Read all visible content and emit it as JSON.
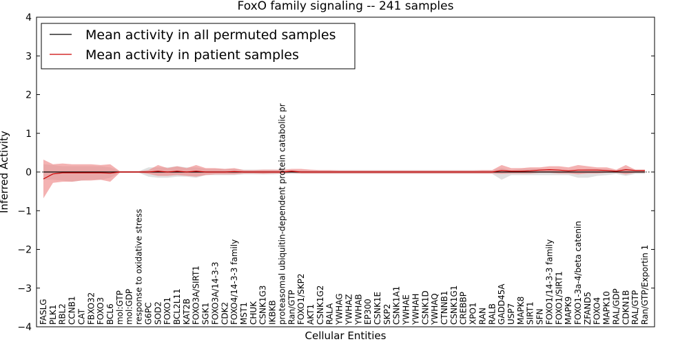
{
  "chart_data": {
    "type": "line",
    "title": "FoxO family signaling -- 241 samples",
    "xlabel": "Cellular Entities",
    "ylabel": "Inferred Activity",
    "ylim": [
      -4,
      4
    ],
    "yticks": [
      -4,
      -3,
      -2,
      -1,
      0,
      1,
      2,
      3,
      4
    ],
    "ytick_labels": [
      "−4",
      "−3",
      "−2",
      "−1",
      "0",
      "1",
      "2",
      "3",
      "4"
    ],
    "legend_position": "top-left",
    "colors": {
      "permuted": "#000000",
      "permuted_band": "#d3d3d3",
      "patient": "#cc0000",
      "patient_band": "#ee8888"
    },
    "categories": [
      "FASLG",
      "PLK1",
      "RBL2",
      "CCNB1",
      "CAT",
      "FBXO32",
      "FOXO3",
      "BCL6",
      "mol:GTP",
      "mol:GDP",
      "response to oxidative stress",
      "G6PC",
      "SOD2",
      "FOXO1",
      "BCL2L11",
      "KAT2B",
      "FOXO3A/SIRT1",
      "SGK1",
      "FOXO3A/14-3-3",
      "CDK2",
      "FOXO4/14-3-3 family",
      "MST1",
      "CHUK",
      "CSNK1G3",
      "IKBKB",
      "proteasomal ubiquitin-dependent protein catabolic pr",
      "Ran/GTP",
      "FOXO1/SKP2",
      "AKT1",
      "CSNK1G2",
      "RALA",
      "YWHAG",
      "YWHAZ",
      "YWHAB",
      "EP300",
      "CSNK1E",
      "SKP2",
      "CSNK1A1",
      "YWHAE",
      "YWHAH",
      "CSNK1D",
      "YWHAQ",
      "CTNNB1",
      "CSNK1G1",
      "CREBBP",
      "XPO1",
      "RAN",
      "RALB",
      "GADD45A",
      "USP7",
      "MAPK8",
      "SIRT1",
      "SFN",
      "FOXO1/14-3-3 family",
      "FOXO1/SIRT1",
      "MAPK9",
      "FOXO1-3a-4/beta catenin",
      "ZFAND5",
      "FOXO4",
      "MAPK10",
      "RAL/GDP",
      "CDKN1B",
      "RAL/GTP",
      "Ran/GTP/Exportin 1"
    ],
    "series": [
      {
        "name": "Mean activity in all permuted samples",
        "values": [
          0,
          0,
          0,
          0,
          0,
          0,
          0,
          0,
          0,
          0,
          0,
          0,
          0,
          0,
          0,
          0,
          0,
          0,
          0,
          0,
          0,
          0,
          0,
          0,
          0,
          0,
          0,
          0,
          0,
          0,
          0,
          0,
          0,
          0,
          0,
          0,
          0,
          0,
          0,
          0,
          0,
          0,
          0,
          0,
          0,
          0,
          0,
          0,
          0,
          0,
          0,
          0,
          0,
          0,
          0,
          0,
          0,
          0,
          0,
          0,
          0,
          0,
          0,
          0
        ],
        "upper": [
          0.2,
          0.18,
          0.15,
          0.15,
          0.15,
          0.15,
          0.15,
          0.12,
          0.02,
          0.02,
          0.02,
          0.12,
          0.12,
          0.12,
          0.15,
          0.12,
          0.12,
          0.08,
          0.08,
          0.08,
          0.08,
          0.06,
          0.06,
          0.06,
          0.06,
          0.05,
          0.05,
          0.05,
          0.05,
          0.05,
          0.05,
          0.05,
          0.05,
          0.05,
          0.05,
          0.05,
          0.05,
          0.05,
          0.05,
          0.05,
          0.05,
          0.05,
          0.05,
          0.05,
          0.05,
          0.05,
          0.05,
          0.05,
          0.1,
          0.05,
          0.08,
          0.08,
          0.08,
          0.05,
          0.05,
          0.05,
          0.05,
          0.08,
          0.08,
          0.06,
          0.05,
          0.1,
          0.05,
          0.05
        ],
        "lower": [
          -0.2,
          -0.2,
          -0.22,
          -0.25,
          -0.22,
          -0.2,
          -0.2,
          -0.15,
          -0.02,
          -0.02,
          -0.02,
          -0.12,
          -0.15,
          -0.15,
          -0.12,
          -0.12,
          -0.15,
          -0.08,
          -0.08,
          -0.08,
          -0.08,
          -0.06,
          -0.06,
          -0.06,
          -0.06,
          -0.05,
          -0.05,
          -0.05,
          -0.05,
          -0.05,
          -0.05,
          -0.05,
          -0.05,
          -0.05,
          -0.05,
          -0.05,
          -0.05,
          -0.05,
          -0.05,
          -0.05,
          -0.05,
          -0.05,
          -0.05,
          -0.05,
          -0.05,
          -0.05,
          -0.05,
          -0.05,
          -0.2,
          -0.08,
          -0.08,
          -0.08,
          -0.08,
          -0.08,
          -0.08,
          -0.08,
          -0.15,
          -0.15,
          -0.1,
          -0.08,
          -0.05,
          -0.1,
          -0.05,
          -0.05
        ]
      },
      {
        "name": "Mean activity in patient samples",
        "values": [
          -0.18,
          -0.05,
          -0.02,
          -0.02,
          -0.02,
          -0.02,
          -0.02,
          -0.03,
          0.0,
          0.0,
          0.0,
          0.0,
          0.02,
          0.0,
          0.02,
          0.0,
          0.02,
          0.0,
          0.0,
          0.0,
          0.01,
          0.0,
          0.0,
          0.0,
          0.0,
          0.0,
          0.02,
          0.0,
          0.0,
          0.0,
          0.0,
          0.0,
          0.0,
          0.0,
          0.0,
          0.0,
          0.0,
          0.0,
          0.0,
          0.0,
          0.0,
          0.0,
          0.0,
          0.0,
          0.0,
          0.0,
          0.0,
          0.0,
          0.04,
          0.02,
          0.02,
          0.03,
          0.05,
          0.06,
          0.05,
          0.03,
          0.05,
          0.05,
          0.05,
          0.04,
          0.02,
          0.06,
          0.04,
          0.04
        ],
        "upper": [
          0.32,
          0.2,
          0.22,
          0.2,
          0.2,
          0.2,
          0.18,
          0.2,
          0.02,
          0.02,
          0.02,
          0.05,
          0.18,
          0.1,
          0.15,
          0.1,
          0.18,
          0.1,
          0.1,
          0.08,
          0.1,
          0.05,
          0.05,
          0.06,
          0.06,
          0.06,
          0.08,
          0.08,
          0.06,
          0.05,
          0.05,
          0.04,
          0.04,
          0.04,
          0.04,
          0.04,
          0.04,
          0.04,
          0.04,
          0.04,
          0.04,
          0.04,
          0.04,
          0.04,
          0.04,
          0.04,
          0.05,
          0.05,
          0.18,
          0.1,
          0.1,
          0.12,
          0.12,
          0.15,
          0.15,
          0.12,
          0.18,
          0.15,
          0.12,
          0.12,
          0.06,
          0.18,
          0.06,
          0.06
        ],
        "lower": [
          -0.68,
          -0.28,
          -0.25,
          -0.25,
          -0.22,
          -0.22,
          -0.2,
          -0.25,
          -0.02,
          -0.02,
          -0.02,
          -0.05,
          -0.1,
          -0.1,
          -0.08,
          -0.1,
          -0.12,
          -0.08,
          -0.06,
          -0.06,
          -0.06,
          -0.04,
          -0.04,
          -0.05,
          -0.04,
          -0.04,
          -0.02,
          -0.04,
          -0.04,
          -0.04,
          -0.04,
          -0.04,
          -0.04,
          -0.04,
          -0.04,
          -0.04,
          -0.04,
          -0.04,
          -0.04,
          -0.04,
          -0.04,
          -0.04,
          -0.04,
          -0.04,
          -0.04,
          -0.04,
          -0.04,
          -0.04,
          -0.05,
          -0.04,
          -0.04,
          -0.04,
          -0.02,
          -0.02,
          -0.04,
          -0.04,
          -0.06,
          -0.04,
          -0.04,
          -0.02,
          -0.02,
          -0.06,
          -0.02,
          -0.02
        ]
      }
    ]
  }
}
